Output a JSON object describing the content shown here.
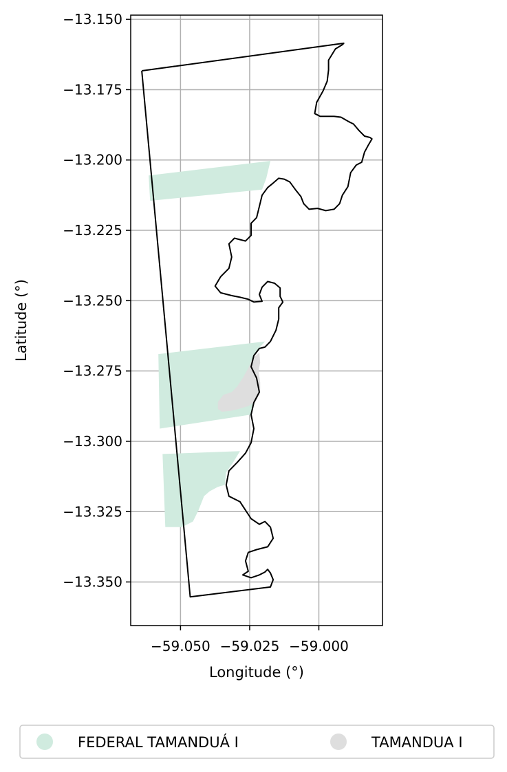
{
  "chart_data": {
    "type": "map",
    "xlabel": "Longitude (°)",
    "ylabel": "Latitude (°)",
    "xlim": [
      -59.068,
      -58.977
    ],
    "ylim": [
      -13.3655,
      -13.1485
    ],
    "grid": true,
    "legend_placement": "bottom-center",
    "x_ticks": [
      {
        "value": -59.05,
        "label": "−59.050"
      },
      {
        "value": -59.025,
        "label": "−59.025"
      },
      {
        "value": -59.0,
        "label": "−59.000"
      }
    ],
    "y_ticks": [
      {
        "value": -13.15,
        "label": "−13.150"
      },
      {
        "value": -13.175,
        "label": "−13.175"
      },
      {
        "value": -13.2,
        "label": "−13.200"
      },
      {
        "value": -13.225,
        "label": "−13.225"
      },
      {
        "value": -13.25,
        "label": "−13.250"
      },
      {
        "value": -13.275,
        "label": "−13.275"
      },
      {
        "value": -13.3,
        "label": "−13.300"
      },
      {
        "value": -13.325,
        "label": "−13.325"
      },
      {
        "value": -13.35,
        "label": "−13.350"
      }
    ],
    "boundary": {
      "stroke": "#000000",
      "coords": [
        [
          -59.064,
          -13.1683
        ],
        [
          -58.991,
          -13.1585
        ],
        [
          -58.9915,
          -13.159
        ],
        [
          -58.994,
          -13.1605
        ],
        [
          -58.9965,
          -13.1645
        ],
        [
          -58.9965,
          -13.168
        ],
        [
          -58.997,
          -13.172
        ],
        [
          -58.9985,
          -13.1755
        ],
        [
          -59.0008,
          -13.1795
        ],
        [
          -59.0015,
          -13.1835
        ],
        [
          -58.9995,
          -13.1845
        ],
        [
          -58.997,
          -13.1845
        ],
        [
          -58.9945,
          -13.1845
        ],
        [
          -58.992,
          -13.1848
        ],
        [
          -58.9895,
          -13.1862
        ],
        [
          -58.9875,
          -13.1872
        ],
        [
          -58.9855,
          -13.1895
        ],
        [
          -58.9835,
          -13.1915
        ],
        [
          -58.9815,
          -13.192
        ],
        [
          -58.9808,
          -13.1925
        ],
        [
          -58.982,
          -13.1945
        ],
        [
          -58.9835,
          -13.1972
        ],
        [
          -58.9845,
          -13.2008
        ],
        [
          -58.9865,
          -13.2018
        ],
        [
          -58.9885,
          -13.2045
        ],
        [
          -58.9895,
          -13.2095
        ],
        [
          -58.9915,
          -13.2125
        ],
        [
          -58.9925,
          -13.2155
        ],
        [
          -58.9945,
          -13.2175
        ],
        [
          -58.9975,
          -13.218
        ],
        [
          -59.0005,
          -13.2172
        ],
        [
          -59.0035,
          -13.2175
        ],
        [
          -59.0055,
          -13.2155
        ],
        [
          -59.0065,
          -13.213
        ],
        [
          -59.0085,
          -13.2105
        ],
        [
          -59.0105,
          -13.2078
        ],
        [
          -59.0125,
          -13.2068
        ],
        [
          -59.0145,
          -13.2065
        ],
        [
          -59.0165,
          -13.2082
        ],
        [
          -59.0185,
          -13.2098
        ],
        [
          -59.0205,
          -13.2125
        ],
        [
          -59.0215,
          -13.2165
        ],
        [
          -59.0225,
          -13.2205
        ],
        [
          -59.0245,
          -13.2225
        ],
        [
          -59.0245,
          -13.2268
        ],
        [
          -59.0265,
          -13.2288
        ],
        [
          -59.0305,
          -13.2278
        ],
        [
          -59.0325,
          -13.2298
        ],
        [
          -59.0315,
          -13.2345
        ],
        [
          -59.0325,
          -13.2385
        ],
        [
          -59.0355,
          -13.2415
        ],
        [
          -59.0375,
          -13.2448
        ],
        [
          -59.0355,
          -13.2472
        ],
        [
          -59.0315,
          -13.2482
        ],
        [
          -59.0285,
          -13.2488
        ],
        [
          -59.0255,
          -13.2495
        ],
        [
          -59.0235,
          -13.2505
        ],
        [
          -59.0205,
          -13.2502
        ],
        [
          -59.0215,
          -13.2478
        ],
        [
          -59.0205,
          -13.2452
        ],
        [
          -59.0185,
          -13.2432
        ],
        [
          -59.016,
          -13.2438
        ],
        [
          -59.014,
          -13.2455
        ],
        [
          -59.014,
          -13.2485
        ],
        [
          -59.013,
          -13.2505
        ],
        [
          -59.0145,
          -13.2525
        ],
        [
          -59.0145,
          -13.2565
        ],
        [
          -59.0155,
          -13.2605
        ],
        [
          -59.0175,
          -13.2645
        ],
        [
          -59.0195,
          -13.2665
        ],
        [
          -59.0215,
          -13.267
        ],
        [
          -59.0235,
          -13.2695
        ],
        [
          -59.0245,
          -13.2735
        ],
        [
          -59.0225,
          -13.2775
        ],
        [
          -59.0215,
          -13.2825
        ],
        [
          -59.0235,
          -13.2862
        ],
        [
          -59.0245,
          -13.2905
        ],
        [
          -59.0235,
          -13.2955
        ],
        [
          -59.0245,
          -13.3005
        ],
        [
          -59.0265,
          -13.3042
        ],
        [
          -59.0295,
          -13.3075
        ],
        [
          -59.0325,
          -13.3105
        ],
        [
          -59.0335,
          -13.3155
        ],
        [
          -59.0325,
          -13.3195
        ],
        [
          -59.0285,
          -13.3215
        ],
        [
          -59.0265,
          -13.3245
        ],
        [
          -59.0245,
          -13.3275
        ],
        [
          -59.0215,
          -13.3295
        ],
        [
          -59.0195,
          -13.3285
        ],
        [
          -59.0175,
          -13.3305
        ],
        [
          -59.0165,
          -13.3345
        ],
        [
          -59.0185,
          -13.3375
        ],
        [
          -59.0225,
          -13.3385
        ],
        [
          -59.0255,
          -13.3395
        ],
        [
          -59.0265,
          -13.3425
        ],
        [
          -59.0255,
          -13.3462
        ],
        [
          -59.0275,
          -13.3475
        ],
        [
          -59.0245,
          -13.3485
        ],
        [
          -59.0215,
          -13.3475
        ],
        [
          -59.0195,
          -13.3465
        ],
        [
          -59.0185,
          -13.3455
        ],
        [
          -59.0175,
          -13.3468
        ],
        [
          -59.0165,
          -13.3492
        ],
        [
          -59.0175,
          -13.3518
        ],
        [
          -59.0465,
          -13.3553
        ],
        [
          -59.064,
          -13.1683
        ]
      ]
    },
    "series": [
      {
        "name": "FEDERAL TAMANDUÁ I",
        "color": "#d0ebdf",
        "polygons": [
          [
            [
              -59.0615,
              -13.2055
            ],
            [
              -59.0175,
              -13.2003
            ],
            [
              -59.019,
              -13.2065
            ],
            [
              -59.0205,
              -13.2105
            ],
            [
              -59.061,
              -13.2145
            ]
          ],
          [
            [
              -59.058,
              -13.269
            ],
            [
              -59.0195,
              -13.2645
            ],
            [
              -59.023,
              -13.2685
            ],
            [
              -59.0245,
              -13.2735
            ],
            [
              -59.0225,
              -13.2775
            ],
            [
              -59.0215,
              -13.2825
            ],
            [
              -59.0235,
              -13.2865
            ],
            [
              -59.0245,
              -13.2905
            ],
            [
              -59.0575,
              -13.2955
            ]
          ],
          [
            [
              -59.0565,
              -13.3045
            ],
            [
              -59.0285,
              -13.3035
            ],
            [
              -59.031,
              -13.3075
            ],
            [
              -59.0335,
              -13.311
            ],
            [
              -59.034,
              -13.3155
            ],
            [
              -59.0365,
              -13.3162
            ],
            [
              -59.0395,
              -13.3178
            ],
            [
              -59.0415,
              -13.3195
            ],
            [
              -59.0435,
              -13.3245
            ],
            [
              -59.0455,
              -13.3285
            ],
            [
              -59.0495,
              -13.3305
            ],
            [
              -59.0555,
              -13.3305
            ]
          ]
        ]
      },
      {
        "name": "TAMANDUA I",
        "color": "#dedede",
        "polygons": [
          [
            [
              -59.0215,
              -13.2685
            ],
            [
              -59.024,
              -13.2705
            ],
            [
              -59.0255,
              -13.274
            ],
            [
              -59.0275,
              -13.2775
            ],
            [
              -59.0295,
              -13.2805
            ],
            [
              -59.0315,
              -13.2825
            ],
            [
              -59.0345,
              -13.2835
            ],
            [
              -59.0365,
              -13.286
            ],
            [
              -59.0365,
              -13.2885
            ],
            [
              -59.035,
              -13.2895
            ],
            [
              -59.032,
              -13.2892
            ],
            [
              -59.029,
              -13.2885
            ],
            [
              -59.0255,
              -13.2875
            ],
            [
              -59.0228,
              -13.2858
            ],
            [
              -59.0212,
              -13.2825
            ],
            [
              -59.0212,
              -13.279
            ],
            [
              -59.0218,
              -13.275
            ],
            [
              -59.0212,
              -13.272
            ]
          ]
        ]
      }
    ]
  }
}
